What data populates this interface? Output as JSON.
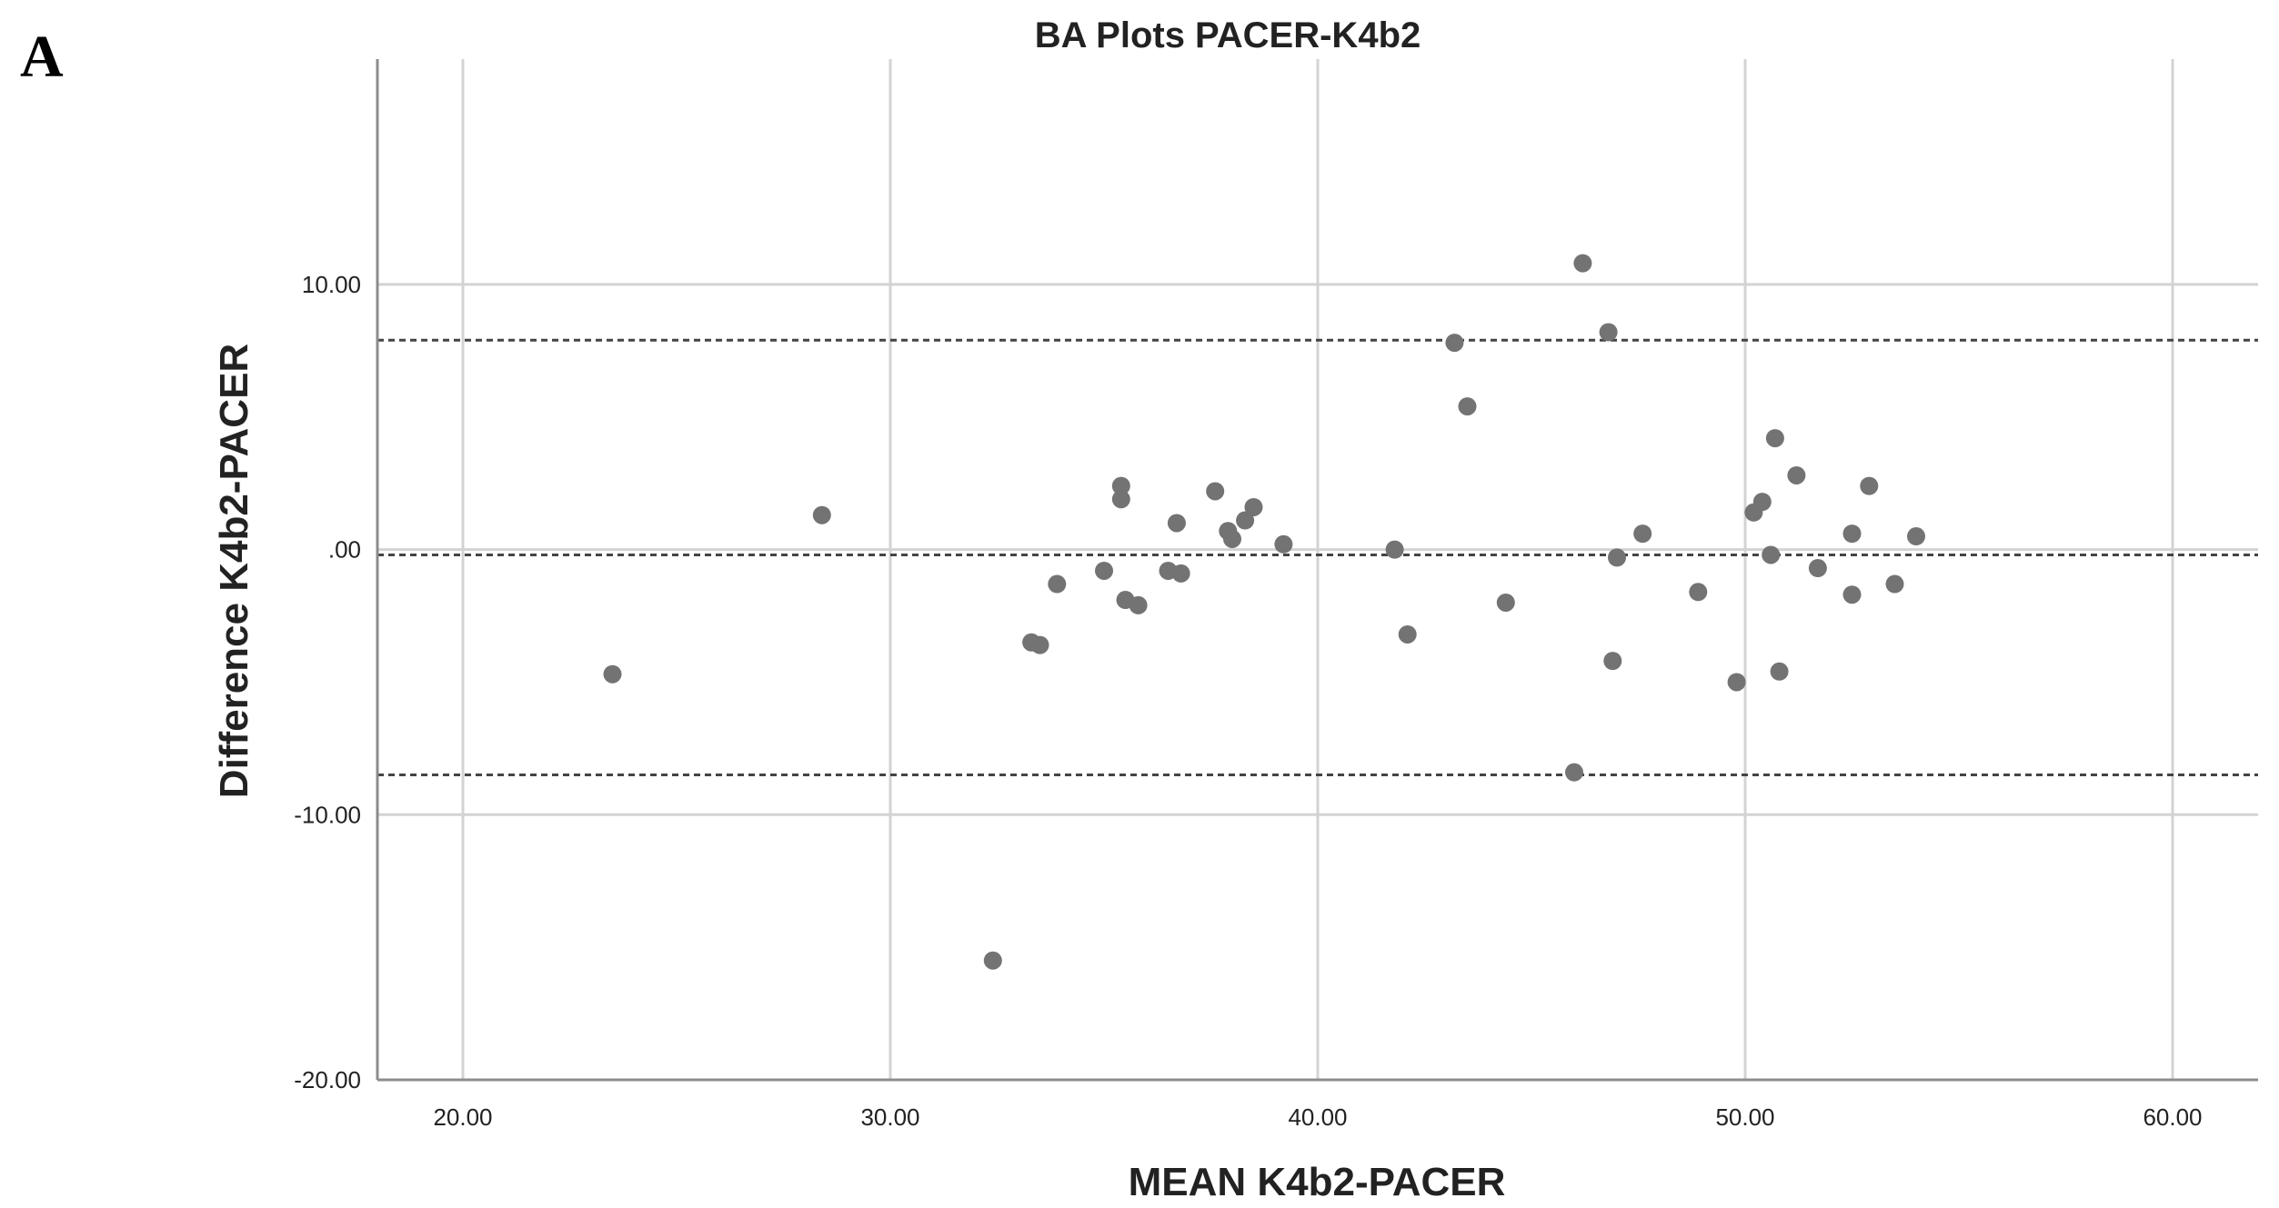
{
  "panel_letter": "A",
  "chart_data": {
    "type": "scatter",
    "title": "BA Plots PACER-K4b2",
    "xlabel": "MEAN K4b2-PACER",
    "ylabel": "Difference K4b2-PACER",
    "xlim": [
      18.0,
      62.0
    ],
    "ylim": [
      -20.0,
      18.5
    ],
    "x_ticks": [
      20,
      30,
      40,
      50,
      60
    ],
    "x_tick_labels": [
      "20.00",
      "30.00",
      "40.00",
      "50.00",
      "60.00"
    ],
    "y_ticks": [
      -20,
      -10,
      0,
      10
    ],
    "y_tick_labels": [
      "-20.00",
      "-10.00",
      ".00",
      "10.00"
    ],
    "grid": true,
    "reference_lines": [
      7.9,
      -0.2,
      -8.5
    ],
    "marker_color": "#737373",
    "points": [
      {
        "x": 23.5,
        "y": -4.7
      },
      {
        "x": 28.4,
        "y": 1.3
      },
      {
        "x": 32.4,
        "y": -15.5
      },
      {
        "x": 33.3,
        "y": -3.5
      },
      {
        "x": 33.5,
        "y": -3.6
      },
      {
        "x": 33.9,
        "y": -1.3
      },
      {
        "x": 35.0,
        "y": -0.8
      },
      {
        "x": 35.4,
        "y": 2.4
      },
      {
        "x": 35.4,
        "y": 1.9
      },
      {
        "x": 35.5,
        "y": -1.9
      },
      {
        "x": 35.8,
        "y": -2.1
      },
      {
        "x": 36.5,
        "y": -0.8
      },
      {
        "x": 36.7,
        "y": 1.0
      },
      {
        "x": 36.8,
        "y": -0.9
      },
      {
        "x": 37.6,
        "y": 2.2
      },
      {
        "x": 37.9,
        "y": 0.7
      },
      {
        "x": 38.0,
        "y": 0.4
      },
      {
        "x": 38.3,
        "y": 1.1
      },
      {
        "x": 38.5,
        "y": 1.6
      },
      {
        "x": 39.2,
        "y": 0.2
      },
      {
        "x": 41.8,
        "y": 0.0
      },
      {
        "x": 42.1,
        "y": -3.2
      },
      {
        "x": 43.2,
        "y": 7.8
      },
      {
        "x": 43.5,
        "y": 5.4
      },
      {
        "x": 44.4,
        "y": -2.0
      },
      {
        "x": 46.0,
        "y": -8.4
      },
      {
        "x": 46.2,
        "y": 10.8
      },
      {
        "x": 46.8,
        "y": 8.2
      },
      {
        "x": 46.9,
        "y": -4.2
      },
      {
        "x": 47.0,
        "y": -0.3
      },
      {
        "x": 47.6,
        "y": 0.6
      },
      {
        "x": 48.9,
        "y": -1.6
      },
      {
        "x": 49.8,
        "y": -5.0
      },
      {
        "x": 50.2,
        "y": 1.4
      },
      {
        "x": 50.4,
        "y": 1.8
      },
      {
        "x": 50.6,
        "y": -0.2
      },
      {
        "x": 50.7,
        "y": 4.2
      },
      {
        "x": 50.8,
        "y": -4.6
      },
      {
        "x": 51.2,
        "y": 2.8
      },
      {
        "x": 51.7,
        "y": -0.7
      },
      {
        "x": 52.5,
        "y": 0.6
      },
      {
        "x": 52.5,
        "y": -1.7
      },
      {
        "x": 52.9,
        "y": 2.4
      },
      {
        "x": 53.5,
        "y": -1.3
      },
      {
        "x": 54.0,
        "y": 0.5
      }
    ]
  }
}
